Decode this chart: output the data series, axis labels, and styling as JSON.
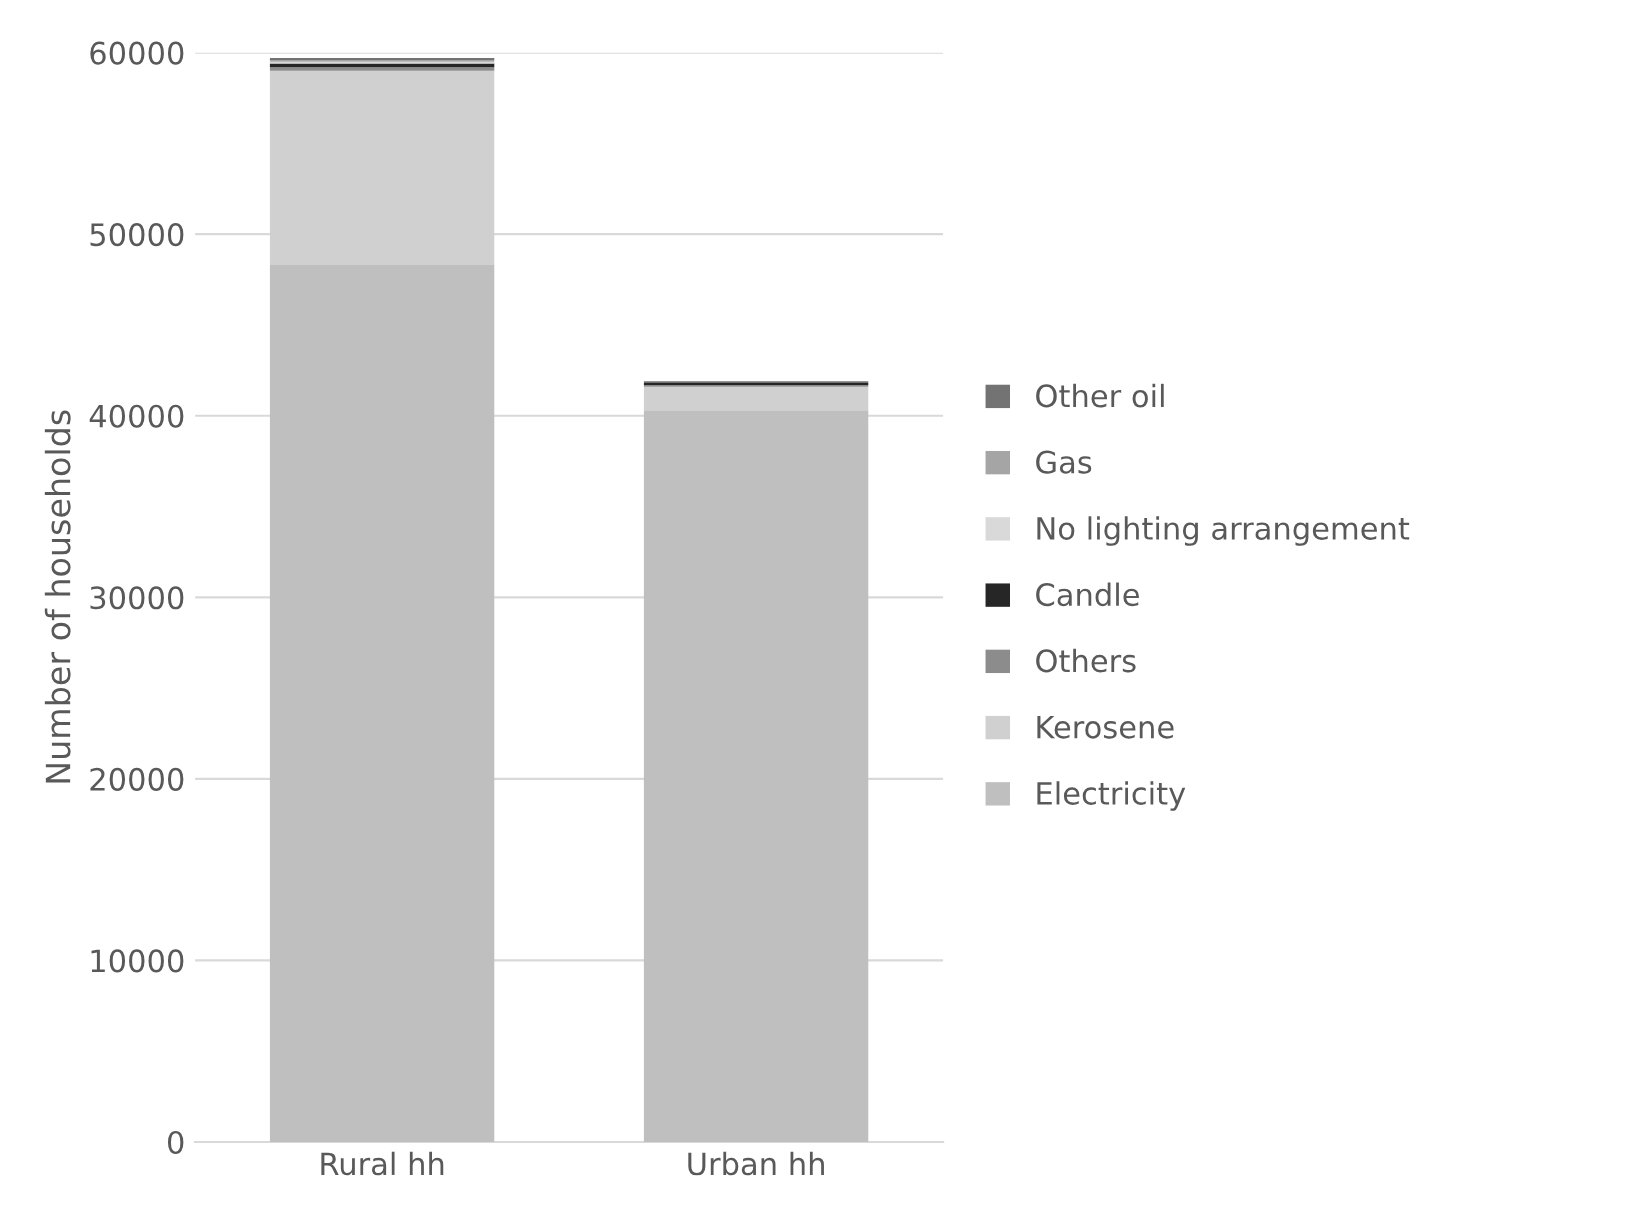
{
  "chart_data": {
    "type": "bar",
    "stacked": true,
    "ylabel": "Number of households",
    "categories": [
      "Rural hh",
      "Urban hh"
    ],
    "series": [
      {
        "name": "Electricity",
        "color": "#bfbfbf",
        "values": [
          48300,
          40300
        ]
      },
      {
        "name": "Kerosene",
        "color": "#d0d0d0",
        "values": [
          10700,
          1300
        ]
      },
      {
        "name": "Others",
        "color": "#8c8c8c",
        "values": [
          200,
          100
        ]
      },
      {
        "name": "Candle",
        "color": "#262626",
        "values": [
          200,
          100
        ]
      },
      {
        "name": "No lighting arrangement",
        "color": "#d9d9d9",
        "values": [
          100,
          0
        ]
      },
      {
        "name": "Gas",
        "color": "#a5a5a5",
        "values": [
          100,
          0
        ]
      },
      {
        "name": "Other oil",
        "color": "#737373",
        "values": [
          100,
          100
        ]
      }
    ],
    "ylim": [
      0,
      60000
    ],
    "yticks": [
      0,
      10000,
      20000,
      30000,
      40000,
      50000,
      60000
    ],
    "grid": "y",
    "legend": "right"
  }
}
